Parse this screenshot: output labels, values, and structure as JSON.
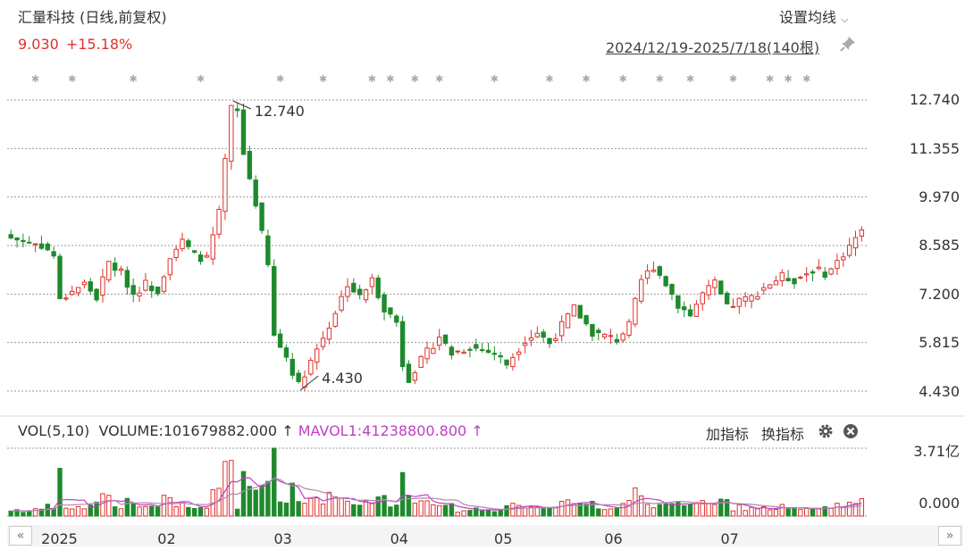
{
  "header": {
    "title": "汇量科技 (日线,前复权)",
    "last_price": "9.030",
    "change_pct": "+15.18%",
    "set_ma_label": "设置均线",
    "date_range": "2024/12/19-2025/7/18(140根)"
  },
  "volume_panel": {
    "label": "VOL(5,10)",
    "volume_text": "VOLUME:101679882.000",
    "mavol_text": "MAVOL1:41238800.800",
    "add_indicator": "加指标",
    "switch_indicator": "换指标",
    "y_top": "3.71亿",
    "y_zero": "0.000"
  },
  "colors": {
    "up": "#e0312b",
    "down": "#1e8a2c",
    "grid": "#999999",
    "mavol": "#c040c0",
    "mavol2": "#b08ab0"
  },
  "icons": {
    "pin": "pin-icon",
    "settings": "gear-icon",
    "close": "close-icon",
    "chevron": "chevron-down-icon",
    "prev": "chevron-left-icon",
    "next": "chevron-right-icon"
  },
  "chart_data": {
    "type": "candlestick",
    "count": 140,
    "y_ticks": [
      12.74,
      11.355,
      9.97,
      8.585,
      7.2,
      5.815,
      4.43
    ],
    "y_tick_labels": [
      "12.740",
      "11.355",
      "9.970",
      "8.585",
      "7.200",
      "5.815",
      "4.430"
    ],
    "x_labels": [
      {
        "label": "2025",
        "index": 7
      },
      {
        "label": "02",
        "index": 26
      },
      {
        "label": "03",
        "index": 45
      },
      {
        "label": "04",
        "index": 64
      },
      {
        "label": "05",
        "index": 81
      },
      {
        "label": "06",
        "index": 99
      },
      {
        "label": "07",
        "index": 118
      }
    ],
    "annotations": [
      {
        "label": "12.740",
        "index": 36,
        "price": 12.74
      },
      {
        "label": "4.430",
        "index": 47,
        "price": 4.43
      }
    ],
    "anchors": [
      [
        0,
        8.8
      ],
      [
        5,
        8.6
      ],
      [
        7,
        8.3
      ],
      [
        8,
        7.0
      ],
      [
        10,
        7.3
      ],
      [
        12,
        7.5
      ],
      [
        14,
        7.1
      ],
      [
        16,
        8.1
      ],
      [
        18,
        7.8
      ],
      [
        20,
        7.2
      ],
      [
        22,
        7.5
      ],
      [
        24,
        7.3
      ],
      [
        26,
        8.3
      ],
      [
        28,
        8.7
      ],
      [
        30,
        8.3
      ],
      [
        32,
        8.2
      ],
      [
        34,
        9.5
      ],
      [
        36,
        12.5
      ],
      [
        37,
        12.4
      ],
      [
        38,
        11.2
      ],
      [
        40,
        9.8
      ],
      [
        42,
        8.0
      ],
      [
        43,
        6.0
      ],
      [
        45,
        5.4
      ],
      [
        47,
        4.6
      ],
      [
        49,
        5.3
      ],
      [
        52,
        6.3
      ],
      [
        55,
        7.5
      ],
      [
        57,
        7.1
      ],
      [
        59,
        7.6
      ],
      [
        61,
        6.8
      ],
      [
        63,
        6.4
      ],
      [
        64,
        5.2
      ],
      [
        65,
        4.8
      ],
      [
        67,
        5.3
      ],
      [
        70,
        6.0
      ],
      [
        72,
        5.5
      ],
      [
        75,
        5.7
      ],
      [
        79,
        5.5
      ],
      [
        81,
        5.2
      ],
      [
        84,
        5.9
      ],
      [
        86,
        6.1
      ],
      [
        88,
        5.8
      ],
      [
        90,
        6.3
      ],
      [
        92,
        6.8
      ],
      [
        95,
        6.1
      ],
      [
        97,
        6.0
      ],
      [
        99,
        5.9
      ],
      [
        101,
        6.3
      ],
      [
        103,
        7.6
      ],
      [
        105,
        8.0
      ],
      [
        107,
        7.5
      ],
      [
        109,
        6.9
      ],
      [
        111,
        6.6
      ],
      [
        113,
        7.2
      ],
      [
        115,
        7.5
      ],
      [
        117,
        6.8
      ],
      [
        119,
        7.0
      ],
      [
        121,
        7.1
      ],
      [
        123,
        7.4
      ],
      [
        126,
        7.7
      ],
      [
        128,
        7.6
      ],
      [
        131,
        7.9
      ],
      [
        133,
        7.8
      ],
      [
        134,
        7.9
      ],
      [
        139,
        9.03
      ]
    ],
    "volume_max": 3.71
  }
}
